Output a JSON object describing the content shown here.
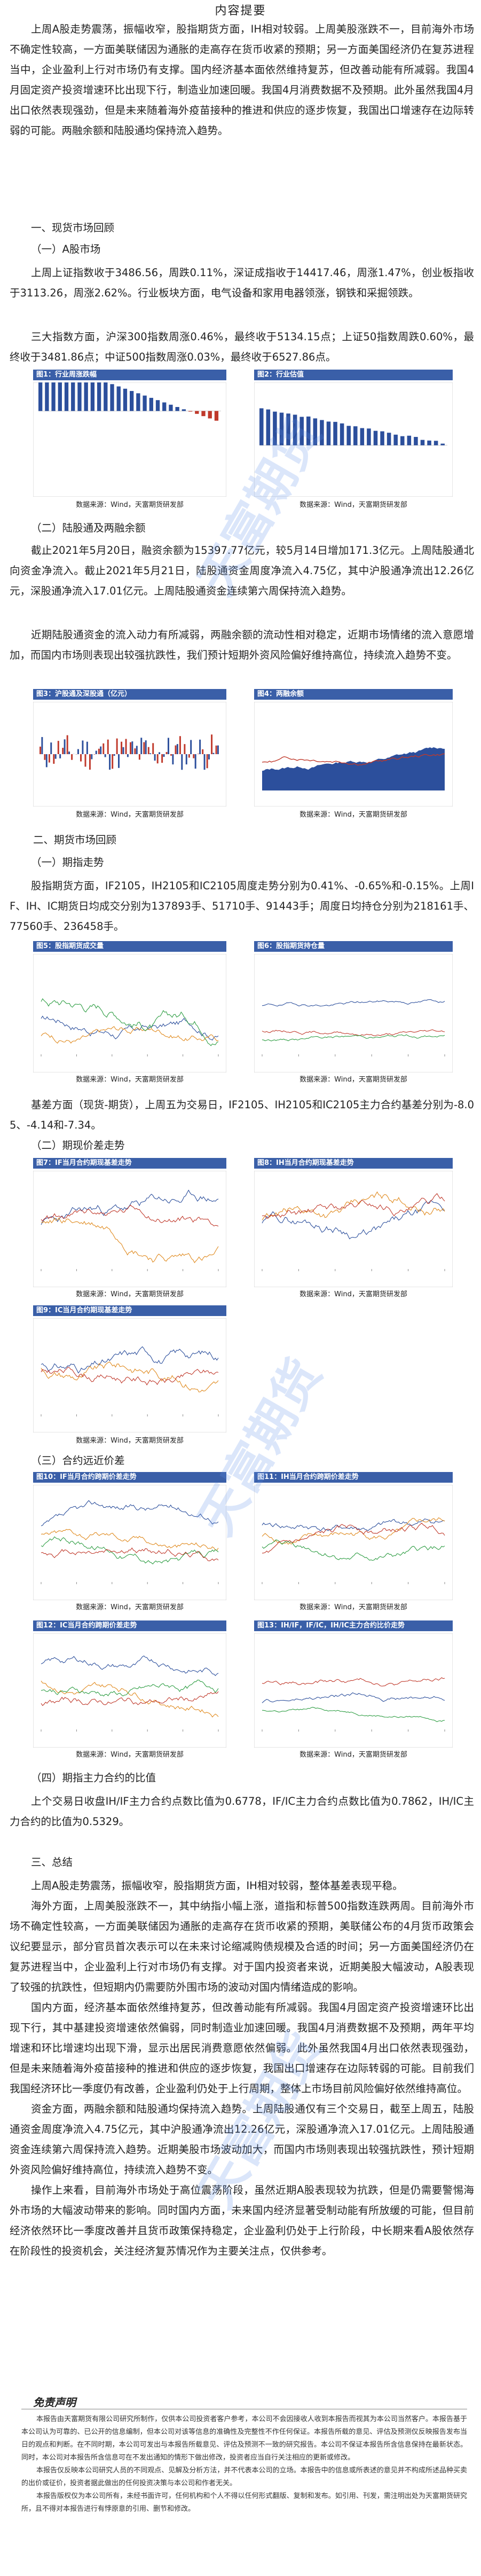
{
  "title": "内容提要",
  "intro": [
    "上周A股走势震荡，振幅收窄，股指期货方面，IH相对较弱。上周美股涨跌不一，目前海外市场不确定性较高，一方面美联储因为通胀的走高存在货币收紧的预期；另一方面美国经济仍在复苏进程当中，企业盈利上行对市场仍有支撑。国内经济基本面依然维持复苏，但改善动能有所减弱。我国4月固定资产投资增速环比出现下行，制造业加速回暖。我国4月消费数据不及预期。此外虽然我国4月出口依然表现强劲，但是未来随着海外疫苗接种的推进和供应的逐步恢复，我国出口增速存在边际转弱的可能。两融余额和陆股通均保持流入趋势。"
  ],
  "sec1": "一、现货市场回顾",
  "sec1_1": "（一）A股市场",
  "para_a1": "上周上证指数收于3486.56，周跌0.11%，深证成指收于14417.46，周涨1.47%，创业板指收于3113.26，周涨2.62%。行业板块方面，电气设备和家用电器领涨，钢铁和采掘领跌。",
  "para_a2": "三大指数方面，沪深300指数周涨0.46%，最终收于5134.15点；上证50指数周跌0.60%，最终收于3481.86点；中证500指数周涨0.03%，最终收于6527.86点。",
  "fig1_title": "图1：行业周涨跌幅",
  "fig2_title": "图2：行业估值",
  "source": "数据来源：Wind，天富期货研发部",
  "sec1_2": "（二）陆股通及两融余额",
  "para_b1": "截止2021年5月20日，融资余额为15397.77亿元，较5月14日增加171.3亿元。上周陆股通北向资金净流入。截止2021年5月21日，陆股通资金周度净流入4.75亿，其中沪股通净流出12.26亿元，深股通净流入17.01亿元。上周陆股通资金连续第六周保持流入趋势。",
  "para_b2": "近期陆股通资金的流入动力有所减弱，两融余额的流动性相对稳定，近期市场情绪的流入意愿增加，而国内市场则表现出较强抗跌性，我们预计短期外资风险偏好维持高位，持续流入趋势不变。",
  "fig3_title": "图3：沪股通及深股通（亿元）",
  "fig4_title": "图4：两融余额",
  "sec2": "二、期货市场回顾",
  "sec2_1": "（一）期指走势",
  "para_c1": "股指期货方面，IF2105，IH2105和IC2105周度走势分别为0.41%、-0.65%和-0.15%。上周IF、IH、IC期货日均成交分别为137893手、51710手、91443手；周度日均持仓分别为218161手、77560手、236458手。",
  "fig5_title": "图5：股指期货成交量",
  "fig6_title": "图6：股指期货持仓量",
  "para_c2": "基差方面（现货-期货），上周五为交易日，IF2105、IH2105和IC2105主力合约基差分别为-8.05、-4.14和-7.34。",
  "sec2_2": "（二）期现价差走势",
  "fig7_title": "图7：IF当月合约期现基差走势",
  "fig8_title": "图8：IH当月合约期现基差走势",
  "fig9_title": "图9：IC当月合约期现基差走势",
  "sec2_3": "（三）合约远近价差",
  "fig10_title": "图10：IF当月合约跨期价差走势",
  "fig11_title": "图11：IH当月合约跨期价差走势",
  "fig12_title": "图12：IC当月合约跨期价差走势",
  "fig13_title": "图13：IH/IF，IF/IC，IH/IC主力合约比价走势",
  "sec2_4": "（四）期指主力合约的比值",
  "para_d1": "上个交易日收盘IH/IF主力合约点数比值为0.6778，IF/IC主力合约点数比值为0.7862，IH/IC主力合约的比值为0.5329。",
  "sec3": "三、总结",
  "summary": [
    "上周A股走势震荡，振幅收窄，股指期货方面，IH相对较弱，整体基差表现平稳。",
    "海外方面，上周美股涨跌不一，其中纳指小幅上涨，道指和标普500指数连跌两周。目前海外市场不确定性较高，一方面美联储因为通胀的走高存在货币收紧的预期，美联储公布的4月货币政策会议纪要显示，部分官员首次表示可以在未来讨论缩减购债规模及合适的时间；另一方面美国经济仍在复苏进程当中，企业盈利上行对市场仍有支撑。对于国内投资者来说，近期美股大幅波动，A股表现了较强的抗跌性，但短期内仍需要防外围市场的波动对国内情绪造成的影响。",
    "国内方面，经济基本面依然维持复苏，但改善动能有所减弱。我国4月固定资产投资增速环比出现下行，其中基建投资增速依然偏弱，同时制造业加速回暖。我国4月消费数据不及预期，两年平均增速和环比增速均出现下滑，显示出居民消费意愿依然偏弱。此外虽然我国4月出口依然表现强劲，但是未来随着海外疫苗接种的推进和供应的逐步恢复，我国出口增速存在边际转弱的可能。目前我们我国经济环比一季度仍有改善，企业盈利仍处于上行周期，整体上市场目前风险偏好依然维持高位。",
    "资金方面，两融余额和陆股通均保持流入趋势。上周陆股通仅有三个交易日，截至上周五，陆股通资金周度净流入4.75亿元，其中沪股通净流出12.26亿元，深股通净流入17.01亿元。上周陆股通资金连续第六周保持流入趋势。近期美股市场波动加大，而国内市场则表现出较强抗跌性，预计短期外资风险偏好维持高位，持续流入趋势不变。",
    "操作上来看，目前海外市场处于高位震荡阶段，虽然近期A股表现较为抗跌，但是仍需要警惕海外市场的大幅波动带来的影响。同时国内方面，未来国内经济显著受制动能有所放缓的可能，但目前经济依然环比一季度改善并且货币政策保持稳定，企业盈利仍处于上行阶段，中长期来看A股依然存在阶段性的投资机会，关注经济复苏情况作为主要关注点，仅供参考。"
  ],
  "disclaimer_title": "免责声明",
  "disclaimer": [
    "本报告由天富期货有限公司研究所制作，仅供本公司投资者客户参考，本公司不会因接收人收到本报告而视其为本公司当然客户。本报告基于本公司认为可靠的、已公开的信息编制，但本公司对该等信息的准确性及完整性不作任何保证。本报告所载的意见、评估及预测仅反映报告发布当日的观点和判断。在不同时期，本公司可发出与本报告所载意见、评估及预测不一致的研究报告。本公司不保证本报告所含信息保持在最新状态。同时，本公司对本报告所含信息可在不发出通知的情形下做出修改，投资者应当自行关注相应的更新或修改。",
    "本报告仅反映本公司研究人员的不同观点、见解及分析方法，并不代表本公司的立场。本报告中的信息或所表述的意见并不构成所述品种买卖的出价或征价，投资者据此做出的任何投资决策与本公司和作者无关。",
    "本报告版权仅为本公司所有，未经书面许可，任何机构和个人不得以任何形式翻版、复制和发布。如引用、刊发，需注明出处为天富期货研究所，且不得对本报告进行有悖原意的引用、删节和修改。"
  ],
  "watermark": "天富期货 TIANFU FUTURES"
}
